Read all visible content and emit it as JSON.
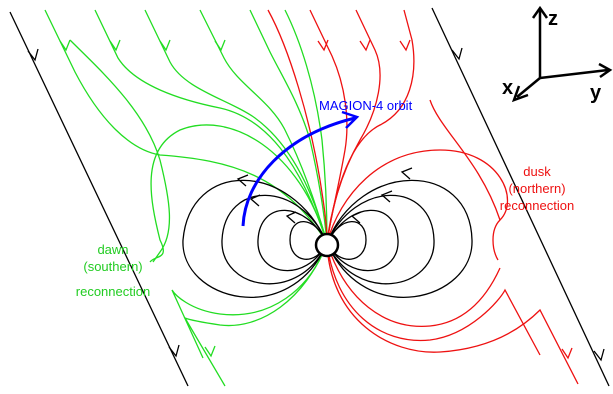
{
  "colors": {
    "background": "#ffffff",
    "dipole_lines": "#000000",
    "imf_lines": "#000000",
    "dawn_lines": "#00dd00",
    "dusk_lines": "#ee0000",
    "orbit": "#0000ff"
  },
  "labels": {
    "orbit": "MAGION-4 orbit",
    "dawn": [
      "dawn",
      "(southern)",
      "reconnection"
    ],
    "dusk": [
      "dusk",
      "(northern)",
      "reconnection"
    ]
  },
  "axes": {
    "z": "z",
    "y": "y",
    "x": "x"
  }
}
